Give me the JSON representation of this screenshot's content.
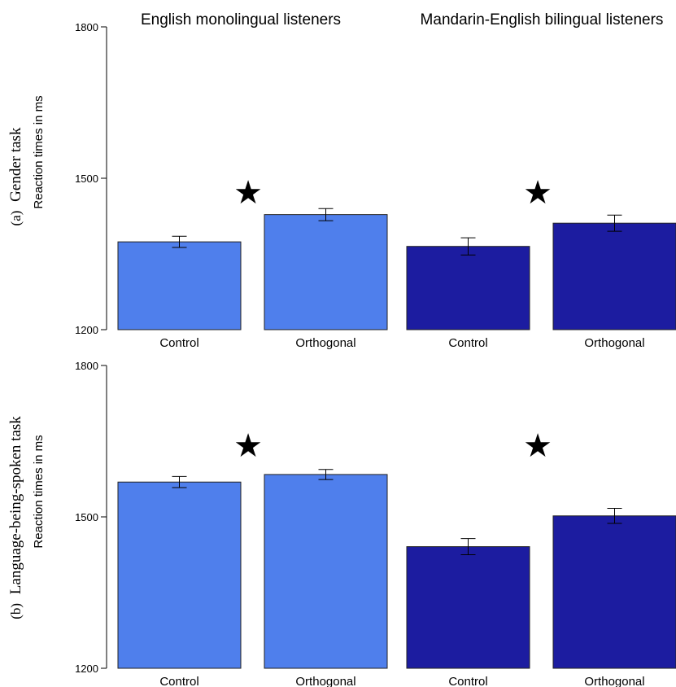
{
  "chart_data": [
    {
      "type": "bar",
      "panel": "(a)",
      "title": "Gender task",
      "ylabel": "Reaction times in ms",
      "ylim": [
        1200,
        1800
      ],
      "yticks": [
        1200,
        1500,
        1800
      ],
      "groups": [
        "English monolingual listeners",
        "Mandarin-English bilingual listeners"
      ],
      "categories": [
        "Control",
        "Orthogonal",
        "Control",
        "Orthogonal"
      ],
      "values": [
        1374,
        1428,
        1365,
        1411
      ],
      "errors": [
        11,
        12,
        17,
        16
      ],
      "group_colors": [
        "#4f7fec",
        "#1c1ca0"
      ],
      "significance_markers": [
        "★",
        "★"
      ]
    },
    {
      "type": "bar",
      "panel": "(b)",
      "title": "Language-being-spoken task",
      "ylabel": "Reaction times in ms",
      "ylim": [
        1200,
        1800
      ],
      "yticks": [
        1200,
        1500,
        1800
      ],
      "groups": [
        "English monolingual listeners",
        "Mandarin-English bilingual listeners"
      ],
      "categories": [
        "Control",
        "Orthogonal",
        "Control",
        "Orthogonal"
      ],
      "values": [
        1569,
        1584,
        1441,
        1502
      ],
      "errors": [
        11,
        10,
        16,
        15
      ],
      "group_colors": [
        "#4f7fec",
        "#1c1ca0"
      ],
      "significance_markers": [
        "★",
        "★"
      ]
    }
  ]
}
